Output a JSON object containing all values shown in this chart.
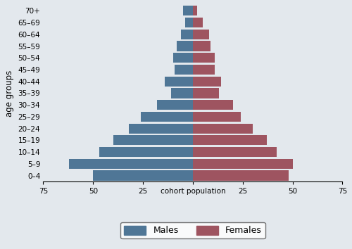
{
  "age_groups": [
    "0–4",
    "5–9",
    "10–14",
    "15–19",
    "20–24",
    "25–29",
    "30–34",
    "35–39",
    "40–44",
    "45–49",
    "50–54",
    "55–59",
    "60–64",
    "65–69",
    "70+"
  ],
  "males": [
    50,
    62,
    47,
    40,
    32,
    26,
    18,
    11,
    14,
    9,
    10,
    8,
    6,
    4,
    5
  ],
  "females": [
    48,
    50,
    42,
    37,
    30,
    24,
    20,
    13,
    14,
    11,
    11,
    9,
    8,
    5,
    2
  ],
  "male_color": "#4f7696",
  "female_color": "#9e5460",
  "background_color": "#e3e8ed",
  "xlim": 75,
  "ylabel": "age groups",
  "legend_males": "Males",
  "legend_females": "Females",
  "bar_height": 0.85
}
